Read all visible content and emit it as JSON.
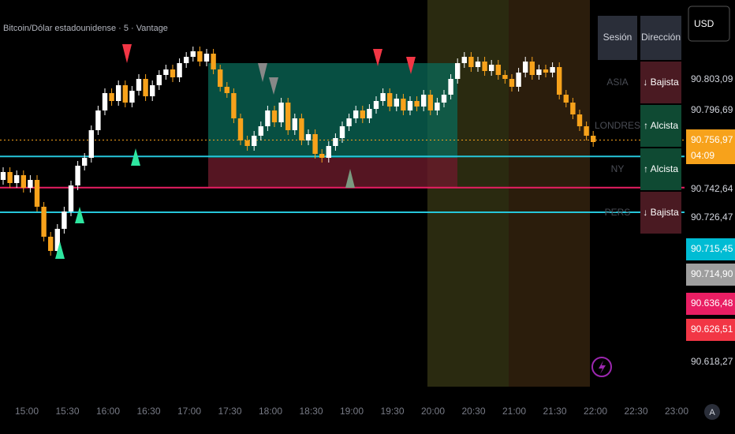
{
  "chart_data": {
    "type": "candlestick",
    "title": "Bitcoin/Dólar estadounidense · 5 · Vantage",
    "up_color": "#ffffff",
    "down_color": "#f7a21b",
    "ylim": [
      90132,
      91112
    ],
    "candles": [
      [
        90656,
        90688,
        90644,
        90676
      ],
      [
        90676,
        90688,
        90636,
        90648
      ],
      [
        90648,
        90680,
        90636,
        90668
      ],
      [
        90668,
        90680,
        90624,
        90636
      ],
      [
        90636,
        90668,
        90624,
        90656
      ],
      [
        90656,
        90668,
        90576,
        90588
      ],
      [
        90588,
        90600,
        90500,
        90512
      ],
      [
        90512,
        90524,
        90464,
        90476
      ],
      [
        90476,
        90544,
        90464,
        90532
      ],
      [
        90532,
        90588,
        90520,
        90576
      ],
      [
        90576,
        90654,
        90564,
        90642
      ],
      [
        90642,
        90704,
        90630,
        90692
      ],
      [
        90692,
        90724,
        90680,
        90712
      ],
      [
        90712,
        90794,
        90700,
        90782
      ],
      [
        90782,
        90844,
        90770,
        90832
      ],
      [
        90832,
        90888,
        90820,
        90876
      ],
      [
        90876,
        90888,
        90844,
        90856
      ],
      [
        90856,
        90908,
        90844,
        90896
      ],
      [
        90896,
        90908,
        90840,
        90852
      ],
      [
        90852,
        90894,
        90840,
        90882
      ],
      [
        90882,
        90924,
        90870,
        90912
      ],
      [
        90912,
        90924,
        90856,
        90868
      ],
      [
        90868,
        90908,
        90856,
        90896
      ],
      [
        90896,
        90934,
        90884,
        90922
      ],
      [
        90922,
        90948,
        90910,
        90936
      ],
      [
        90936,
        90948,
        90904,
        90916
      ],
      [
        90916,
        90964,
        90904,
        90952
      ],
      [
        90952,
        90980,
        90940,
        90968
      ],
      [
        90968,
        90994,
        90956,
        90982
      ],
      [
        90982,
        90994,
        90944,
        90956
      ],
      [
        90956,
        90988,
        90944,
        90976
      ],
      [
        90976,
        90988,
        90924,
        90936
      ],
      [
        90936,
        90948,
        90880,
        90892
      ],
      [
        90892,
        90904,
        90864,
        90876
      ],
      [
        90876,
        90888,
        90800,
        90812
      ],
      [
        90812,
        90824,
        90744,
        90756
      ],
      [
        90756,
        90768,
        90730,
        90742
      ],
      [
        90742,
        90780,
        90730,
        90768
      ],
      [
        90768,
        90804,
        90756,
        90792
      ],
      [
        90792,
        90844,
        90780,
        90832
      ],
      [
        90832,
        90844,
        90790,
        90802
      ],
      [
        90802,
        90864,
        90790,
        90852
      ],
      [
        90852,
        90864,
        90770,
        90782
      ],
      [
        90782,
        90824,
        90770,
        90812
      ],
      [
        90812,
        90824,
        90744,
        90756
      ],
      [
        90756,
        90784,
        90744,
        90772
      ],
      [
        90772,
        90784,
        90710,
        90722
      ],
      [
        90722,
        90734,
        90700,
        90712
      ],
      [
        90712,
        90754,
        90700,
        90742
      ],
      [
        90742,
        90774,
        90730,
        90762
      ],
      [
        90762,
        90804,
        90750,
        90792
      ],
      [
        90792,
        90824,
        90780,
        90812
      ],
      [
        90812,
        90844,
        90800,
        90832
      ],
      [
        90832,
        90844,
        90800,
        90812
      ],
      [
        90812,
        90848,
        90800,
        90836
      ],
      [
        90836,
        90868,
        90824,
        90856
      ],
      [
        90856,
        90888,
        90844,
        90876
      ],
      [
        90876,
        90888,
        90830,
        90842
      ],
      [
        90842,
        90874,
        90830,
        90862
      ],
      [
        90862,
        90874,
        90820,
        90832
      ],
      [
        90832,
        90868,
        90820,
        90856
      ],
      [
        90856,
        90868,
        90830,
        90842
      ],
      [
        90842,
        90884,
        90830,
        90872
      ],
      [
        90872,
        90884,
        90820,
        90832
      ],
      [
        90832,
        90864,
        90820,
        90852
      ],
      [
        90852,
        90884,
        90840,
        90872
      ],
      [
        90872,
        90924,
        90860,
        90912
      ],
      [
        90912,
        90964,
        90900,
        90952
      ],
      [
        90952,
        90980,
        90940,
        90968
      ],
      [
        90968,
        90980,
        90930,
        90942
      ],
      [
        90942,
        90968,
        90930,
        90956
      ],
      [
        90956,
        90968,
        90920,
        90932
      ],
      [
        90932,
        90960,
        90920,
        90948
      ],
      [
        90948,
        90960,
        90910,
        90922
      ],
      [
        90922,
        90934,
        90900,
        90912
      ],
      [
        90912,
        90924,
        90880,
        90892
      ],
      [
        90892,
        90940,
        90880,
        90928
      ],
      [
        90928,
        90968,
        90916,
        90956
      ],
      [
        90956,
        90968,
        90910,
        90922
      ],
      [
        90922,
        90948,
        90910,
        90936
      ],
      [
        90936,
        90948,
        90916,
        90928
      ],
      [
        90928,
        90954,
        90916,
        90942
      ],
      [
        90942,
        90954,
        90860,
        90872
      ],
      [
        90872,
        90884,
        90840,
        90852
      ],
      [
        90852,
        90864,
        90810,
        90822
      ],
      [
        90822,
        90834,
        90780,
        90792
      ],
      [
        90792,
        90804,
        90756,
        90768
      ],
      [
        90768,
        90780,
        90740,
        90752
      ]
    ],
    "levels": [
      {
        "value": 90756.97,
        "color": "#f7a21b"
      },
      {
        "value": 90715.45,
        "color": "#26c6da"
      },
      {
        "value": 90636.48,
        "color": "#e91e63"
      },
      {
        "value": 90574,
        "color": "#26c6da"
      }
    ],
    "time_labels": [
      "15:00",
      "15:30",
      "16:00",
      "16:30",
      "17:00",
      "17:30",
      "18:00",
      "18:30",
      "19:00",
      "19:30",
      "20:00",
      "20:30",
      "21:00",
      "21:30",
      "22:00",
      "22:30",
      "23:00"
    ],
    "price_labels": [
      {
        "label": "90.803,09",
        "bg": "#000000"
      },
      {
        "label": "90.796,69",
        "bg": "#000000"
      },
      {
        "label": "90.756,97",
        "bg": "#f7a21b",
        "sub": "04:09"
      },
      {
        "label": "90.742,64",
        "bg": "#000000"
      },
      {
        "label": "90.726,47",
        "bg": "#000000"
      },
      {
        "label": "90.715,45",
        "bg": "#00bcd4"
      },
      {
        "label": "90.714,90",
        "bg": "#9e9e9e"
      },
      {
        "label": "90.636,48",
        "bg": "#e91e63"
      },
      {
        "label": "90.626,51",
        "bg": "#f23645"
      },
      {
        "label": "90.618,27",
        "bg": "#000000"
      }
    ],
    "currency": "USD",
    "scale_button": "A",
    "session_table": {
      "headers": [
        "Sesión",
        "Dirección"
      ],
      "rows": [
        [
          "ASIA",
          "↓ Bajista"
        ],
        [
          "LONDRES",
          "↑ Alcista"
        ],
        [
          "NY",
          "↑ Alcista"
        ],
        [
          "PERS",
          "↓ Bajista"
        ]
      ]
    }
  }
}
